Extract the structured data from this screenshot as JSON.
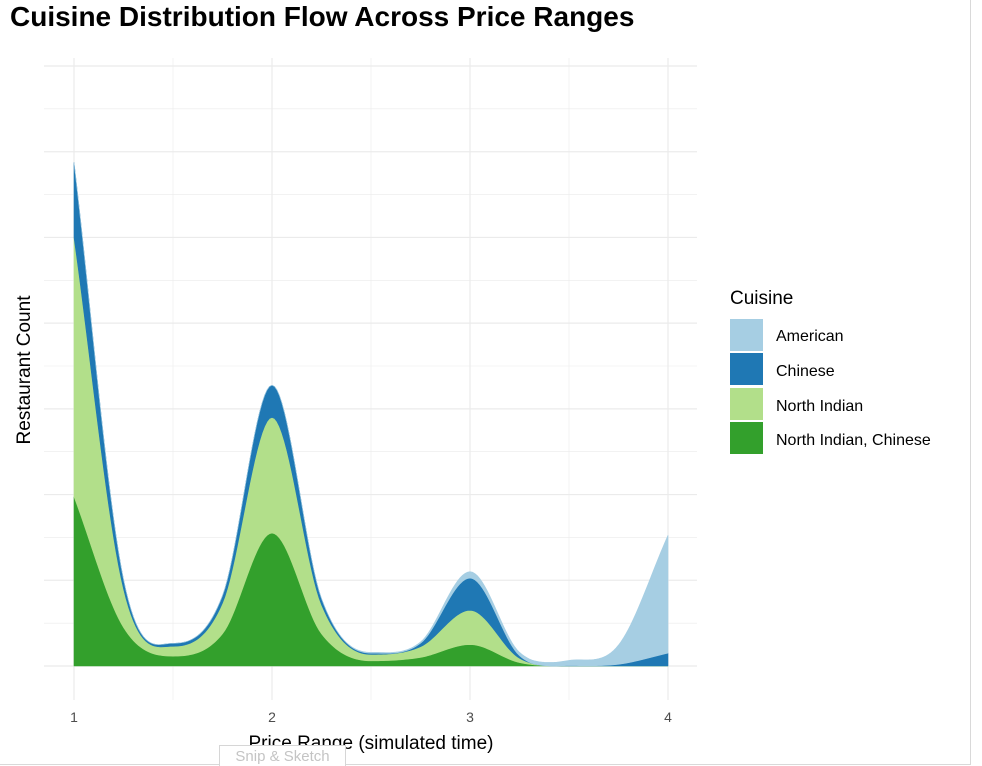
{
  "chart_data": {
    "type": "area",
    "title": "Cuisine Distribution Flow Across Price Ranges",
    "xlabel": "Price Range (simulated time)",
    "ylabel": "Restaurant Count",
    "xlim": [
      1,
      4
    ],
    "x_ticks": [
      "1",
      "2",
      "3",
      "4"
    ],
    "y_tick_labels_shown": false,
    "grid": true,
    "stacked": true,
    "legend": {
      "title": "Cuisine",
      "position": "right"
    },
    "x": [
      1.0,
      1.25,
      1.5,
      1.75,
      2.0,
      2.25,
      2.5,
      2.75,
      3.0,
      3.25,
      3.5,
      3.75,
      4.0
    ],
    "series": [
      {
        "name": "North Indian, Chinese",
        "color": "#33a02c",
        "values": [
          39.5,
          9.0,
          2.3,
          7.5,
          31.0,
          7.5,
          1.2,
          2.0,
          5.0,
          0.8,
          0.0,
          0.0,
          0.0
        ]
      },
      {
        "name": "North Indian",
        "color": "#b2df8a",
        "values": [
          60.5,
          9.0,
          2.3,
          7.2,
          27.0,
          6.8,
          1.5,
          2.5,
          8.0,
          1.0,
          0.0,
          0.0,
          0.0
        ]
      },
      {
        "name": "Chinese",
        "color": "#1f78b4",
        "values": [
          17.5,
          2.2,
          0.7,
          1.7,
          7.5,
          1.4,
          0.3,
          0.8,
          7.5,
          0.6,
          0.1,
          0.4,
          3.0
        ]
      },
      {
        "name": "American",
        "color": "#a6cee3",
        "values": [
          0.0,
          0.0,
          0.0,
          0.0,
          0.0,
          0.0,
          0.2,
          0.3,
          1.5,
          0.8,
          1.2,
          4.5,
          27.5
        ]
      }
    ],
    "ylim": [
      0,
      140
    ],
    "y_gridlines": [
      0,
      20,
      40,
      60,
      80,
      100,
      120,
      140
    ]
  },
  "ui": {
    "snip_caption": "Snip & Sketch"
  }
}
